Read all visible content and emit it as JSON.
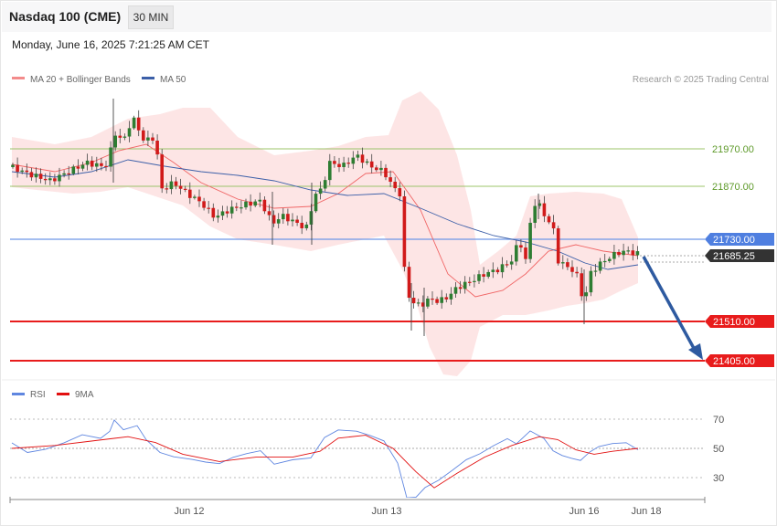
{
  "header": {
    "instrument": "Nasdaq 100 (CME)",
    "timeframe": "30 MIN",
    "datetime": "Monday, June 16, 2025 7:21:25 AM CET",
    "copyright": "Research © 2025 Trading Central"
  },
  "colors": {
    "bollinger": "#f38b8b",
    "ma20": "#f06666",
    "ma50": "#3c5fa8",
    "target": "#e81c1c",
    "pivot": "#4f7fe0",
    "resistance": "#7aae3a",
    "arrow": "#2e5aa0",
    "candle_up": "#2e7d32",
    "candle_down": "#d11a1a",
    "rsi": "#5f86e0",
    "rsi_ma": "#e21010"
  },
  "chart_data": [
    {
      "type": "candlestick",
      "legend": [
        {
          "name": "MA 20 + Bollinger Bands",
          "color": "#f38b8b"
        },
        {
          "name": "MA 50",
          "color": "#3c5fa8"
        }
      ],
      "ylim": [
        21395,
        21780
      ],
      "x_ticks": [
        "Jun 12",
        "Jun 13",
        "Jun 16",
        "Jun 18"
      ],
      "levels": [
        {
          "label": "21970.00",
          "value": 21970,
          "kind": "resistance"
        },
        {
          "label": "21870.00",
          "value": 21870,
          "kind": "resistance"
        },
        {
          "label": "21730.00",
          "value": 21730,
          "kind": "pivot"
        },
        {
          "label": "21685.25",
          "value": 21685.25,
          "kind": "last"
        },
        {
          "label": "21510.00",
          "value": 21510,
          "kind": "support"
        },
        {
          "label": "21405.00",
          "value": 21405,
          "kind": "support"
        }
      ],
      "forecast": {
        "from": 21685,
        "to": 21405
      }
    },
    {
      "type": "line",
      "legend": [
        {
          "name": "RSI",
          "color": "#5f86e0"
        },
        {
          "name": "9MA",
          "color": "#e21010"
        }
      ],
      "y_ticks": [
        "70",
        "50",
        "30"
      ],
      "ylim": [
        20,
        80
      ],
      "reference": 50
    }
  ]
}
